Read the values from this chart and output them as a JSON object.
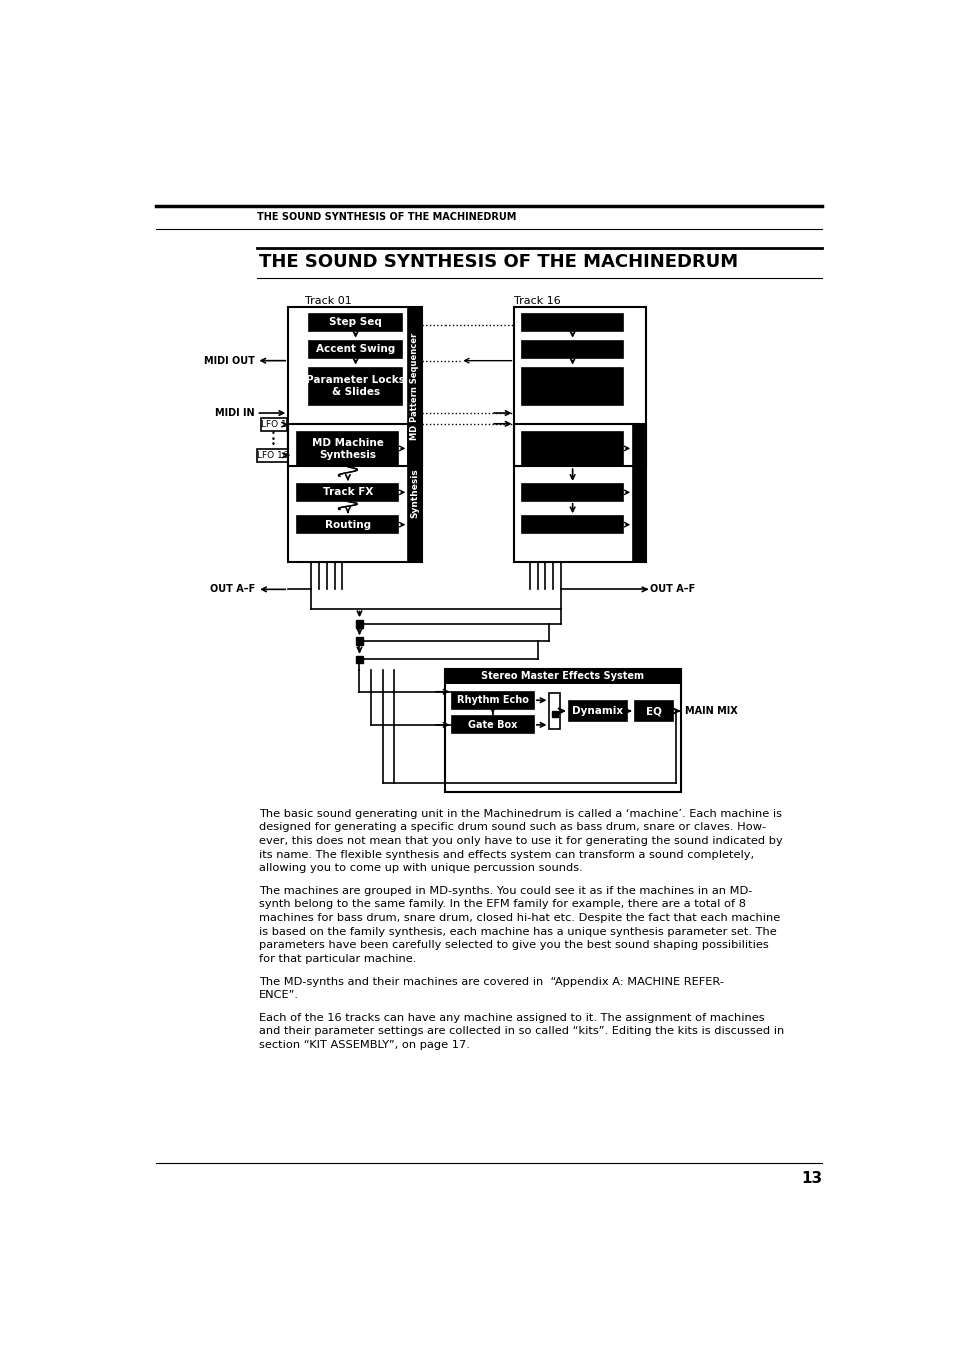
{
  "header_text": "THE SOUND SYNTHESIS OF THE MACHINEDRUM",
  "section_title": "THE SOUND SYNTHESIS OF THE MACHINEDRUM",
  "page_number": "13",
  "bg_color": "#ffffff"
}
